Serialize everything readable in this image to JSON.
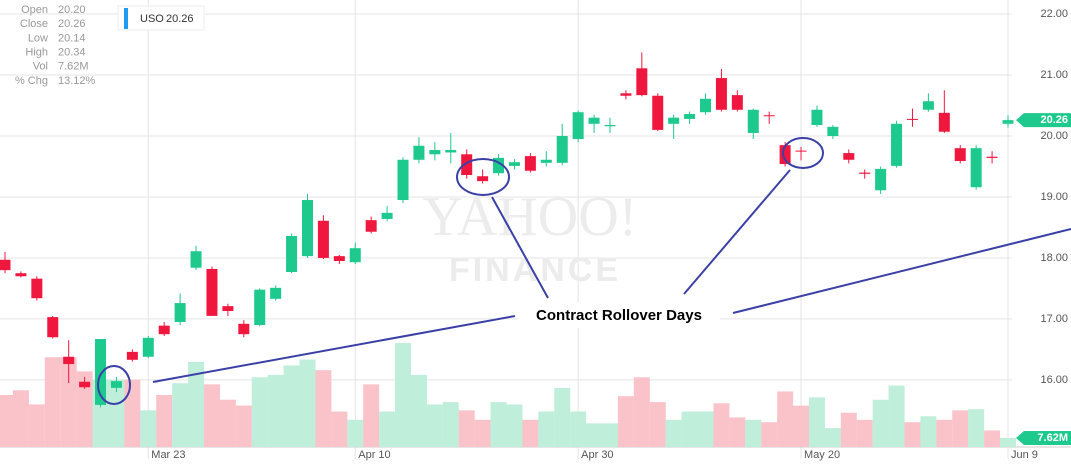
{
  "chart_data": {
    "type": "candlestick",
    "series": [
      {
        "name": "USO",
        "open": [
          17.97,
          17.75,
          17.66,
          17.03,
          16.38,
          15.97,
          15.59,
          15.87,
          16.46,
          16.38,
          16.89,
          16.95,
          17.84,
          17.82,
          17.21,
          16.92,
          16.9,
          17.33,
          17.77,
          18.03,
          18.61,
          18.03,
          17.93,
          18.62,
          18.64,
          18.95,
          19.61,
          19.7,
          19.73,
          19.7,
          19.34,
          19.39,
          19.51,
          19.67,
          19.56,
          19.56,
          19.95,
          20.2,
          20.16,
          20.7,
          21.11,
          20.66,
          20.2,
          20.28,
          20.39,
          20.95,
          20.67,
          20.05,
          20.34,
          19.85,
          19.76,
          20.18,
          20.0,
          19.72,
          19.4,
          19.11,
          19.51,
          20.28,
          20.43,
          20.38,
          19.8,
          19.16,
          19.66,
          20.2
        ],
        "high": [
          18.1,
          17.78,
          17.7,
          17.05,
          16.65,
          16.05,
          16.67,
          16.05,
          16.5,
          16.72,
          16.95,
          17.42,
          18.2,
          17.86,
          17.25,
          16.98,
          17.5,
          17.55,
          18.4,
          19.05,
          18.7,
          18.05,
          18.25,
          18.68,
          18.85,
          19.65,
          19.98,
          19.9,
          20.05,
          19.78,
          19.45,
          19.7,
          19.62,
          19.72,
          19.75,
          20.2,
          20.42,
          20.35,
          20.3,
          20.75,
          21.37,
          20.7,
          20.35,
          20.4,
          20.7,
          21.1,
          20.75,
          20.45,
          20.4,
          19.9,
          19.82,
          20.5,
          20.18,
          19.78,
          19.45,
          19.5,
          20.25,
          20.45,
          20.7,
          20.75,
          19.85,
          19.85,
          19.75,
          20.34
        ],
        "low": [
          17.75,
          17.68,
          17.3,
          16.68,
          15.95,
          15.85,
          15.55,
          15.8,
          16.3,
          16.36,
          16.72,
          16.9,
          17.8,
          17.05,
          17.05,
          16.7,
          16.88,
          17.3,
          17.75,
          18.0,
          17.98,
          17.9,
          17.9,
          18.4,
          18.6,
          18.9,
          19.55,
          19.6,
          19.55,
          19.3,
          19.22,
          19.35,
          19.45,
          19.4,
          19.5,
          19.52,
          19.9,
          20.05,
          20.05,
          20.6,
          20.65,
          20.08,
          19.95,
          20.2,
          20.35,
          20.4,
          20.4,
          19.95,
          20.2,
          19.5,
          19.6,
          20.15,
          19.95,
          19.55,
          19.3,
          19.05,
          19.48,
          20.15,
          20.4,
          20.05,
          19.55,
          19.12,
          19.55,
          20.14
        ],
        "close": [
          17.8,
          17.7,
          17.34,
          16.7,
          16.26,
          15.88,
          16.67,
          15.98,
          16.33,
          16.69,
          16.75,
          17.26,
          18.11,
          17.05,
          17.13,
          16.75,
          17.48,
          17.51,
          18.36,
          18.95,
          18.0,
          17.95,
          18.16,
          18.43,
          18.74,
          19.61,
          19.84,
          19.77,
          19.77,
          19.36,
          19.26,
          19.64,
          19.57,
          19.43,
          19.61,
          20.0,
          20.39,
          20.3,
          20.18,
          20.66,
          20.67,
          20.1,
          20.3,
          20.36,
          20.61,
          20.43,
          20.43,
          20.43,
          20.33,
          19.54,
          19.75,
          20.43,
          20.15,
          19.61,
          19.38,
          19.46,
          20.2,
          20.27,
          20.57,
          20.07,
          19.59,
          19.8,
          19.64,
          20.26
        ],
        "volume": [
          44,
          48,
          36,
          76,
          76,
          64,
          57,
          57,
          57,
          31,
          44,
          54,
          72,
          53,
          40,
          35,
          59,
          61,
          69,
          74,
          65,
          30,
          23,
          53,
          30,
          88,
          61,
          36,
          38,
          31,
          23,
          38,
          36,
          23,
          30,
          50,
          30,
          20,
          20,
          43,
          59,
          38,
          23,
          30,
          30,
          37,
          25,
          23,
          21,
          47,
          35,
          42,
          16,
          29,
          23,
          40,
          52,
          21,
          26,
          23,
          31,
          32,
          14,
          7.62
        ]
      }
    ],
    "up_color": "#1dc98c",
    "down_color": "#f0173f",
    "up_volume_color": "#bfeedb",
    "down_volume_color": "#f9c3c9",
    "ylim": [
      14.9,
      22.23
    ],
    "yticks": [
      {
        "value": 16,
        "label": "16.00"
      },
      {
        "value": 17,
        "label": "17.00"
      },
      {
        "value": 18,
        "label": "18.00"
      },
      {
        "value": 19,
        "label": "19.00"
      },
      {
        "value": 20,
        "label": "20.00"
      },
      {
        "value": 21,
        "label": "21.00"
      },
      {
        "value": 22,
        "label": "22.00"
      }
    ],
    "xlim": [
      -0.3,
      63.3
    ],
    "xticks": [
      {
        "value": 9,
        "label": "Mar 23"
      },
      {
        "value": 22,
        "label": "Apr 10"
      },
      {
        "value": 36,
        "label": "Apr 30"
      },
      {
        "value": 50,
        "label": "May 20"
      },
      {
        "value": 63,
        "label": "Jun 9"
      }
    ],
    "grid": true,
    "info": [
      {
        "label": "Open",
        "value": "20.20"
      },
      {
        "label": "Close",
        "value": "20.26"
      },
      {
        "label": "Low",
        "value": "20.14"
      },
      {
        "label": "High",
        "value": "20.34"
      },
      {
        "label": "Vol",
        "value": "7.62M"
      },
      {
        "label": "% Chg",
        "value": "13.12%"
      }
    ],
    "annotation": "Contract Rollover Days",
    "watermark": [
      "YAHOO!",
      "FINANCE"
    ]
  }
}
